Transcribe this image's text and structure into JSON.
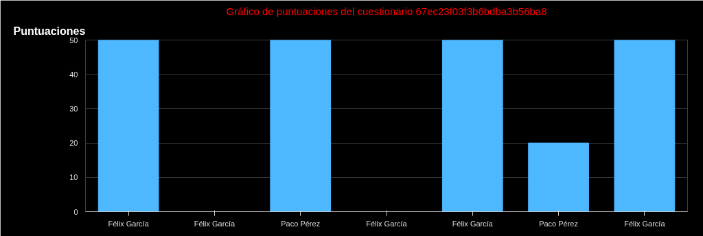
{
  "chart_data": {
    "type": "bar",
    "title": "Gráfico de puntuaciones del cuestionario 67ec23f03f3b6bdba3b56ba8",
    "ylabel": "Puntuaciones",
    "categories": [
      "Félix García",
      "Félix García",
      "Paco Pérez",
      "Félix García",
      "Félix García",
      "Paco Pérez",
      "Félix García"
    ],
    "values": [
      50,
      0,
      50,
      0,
      50,
      20,
      50
    ],
    "color": "#4db8ff",
    "ylim": [
      0,
      50
    ],
    "yticks": [
      0,
      10,
      20,
      30,
      40,
      50
    ],
    "grid": "y"
  }
}
